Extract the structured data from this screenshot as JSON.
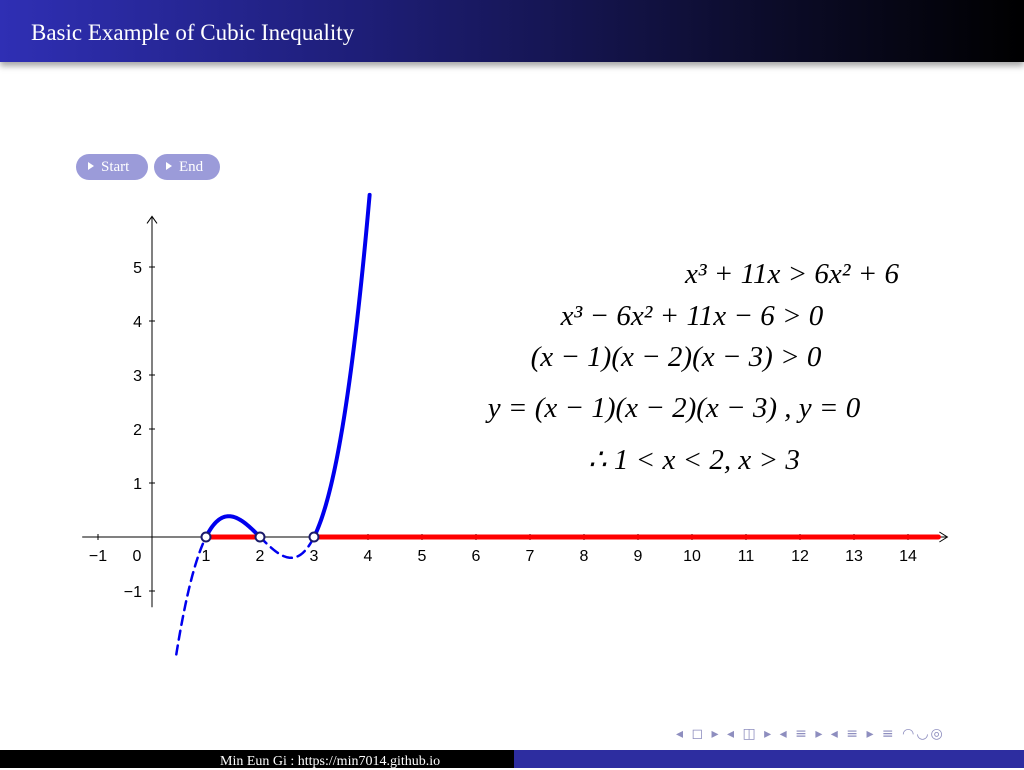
{
  "header": {
    "title": "Basic Example of Cubic Inequality"
  },
  "buttons": {
    "start": "Start",
    "end": "End"
  },
  "equations": [
    "x³ + 11x > 6x² + 6",
    "x³ − 6x² + 11x − 6 > 0",
    "(x − 1)(x − 2)(x − 3) > 0",
    "y = (x − 1)(x − 2)(x − 3) ,  y = 0",
    "∴ 1 < x < 2, x > 3"
  ],
  "footer": {
    "text": "Min Eun Gi : https://min7014.github.io"
  },
  "nav_icons": "◂ ◻ ▸ ◂ ◫ ▸ ◂ ≡ ▸ ◂ ≡ ▸ ≡ ◠◡◎",
  "chart_data": {
    "type": "line",
    "function": "y = (x - 1)(x - 2)(x - 3)",
    "xlim": [
      -1.2,
      14.6
    ],
    "ylim": [
      -1.3,
      5.9
    ],
    "x_ticks": [
      -1,
      0,
      1,
      2,
      3,
      4,
      5,
      6,
      7,
      8,
      9,
      10,
      11,
      12,
      13,
      14
    ],
    "y_ticks": [
      -1,
      1,
      2,
      3,
      4,
      5
    ],
    "roots": [
      1,
      2,
      3
    ],
    "solution_intervals": [
      [
        1,
        2
      ],
      [
        3,
        14.6
      ]
    ],
    "series": [
      {
        "style": "dashed",
        "x_range": [
          0.45,
          1
        ],
        "color": "#0000ee"
      },
      {
        "style": "solid",
        "x_range": [
          1,
          2
        ],
        "color": "#0000ee"
      },
      {
        "style": "dashed",
        "x_range": [
          2,
          3
        ],
        "color": "#0000ee"
      },
      {
        "style": "solid",
        "x_range": [
          3,
          4.03
        ],
        "color": "#0000ee"
      }
    ],
    "colors": {
      "curve": "#0000ee",
      "solution": "#ff0000",
      "axis": "#000000"
    },
    "grid": false
  }
}
